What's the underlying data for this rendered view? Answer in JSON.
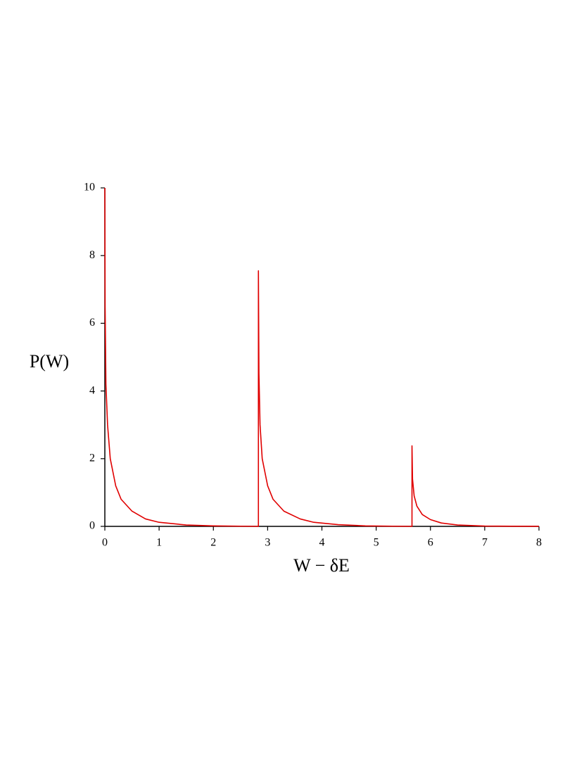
{
  "chart_data": {
    "type": "line",
    "x_label": "W − δE",
    "y_label": "P(W)",
    "color": "#e00000",
    "x": [
      0,
      0.005,
      0.02,
      0.05,
      0.1,
      0.2,
      0.3,
      0.5,
      0.75,
      1,
      1.5,
      2,
      2.5,
      2.83,
      2.83,
      2.84,
      2.86,
      2.9,
      3.0,
      3.1,
      3.3,
      3.6,
      3.85,
      4.3,
      4.8,
      5.3,
      5.66,
      5.66,
      5.67,
      5.7,
      5.75,
      5.85,
      6,
      6.2,
      6.5,
      7,
      7.5,
      8
    ],
    "values": [
      10,
      6.5,
      4.2,
      3,
      2.0,
      1.2,
      0.8,
      0.45,
      0.22,
      0.12,
      0.04,
      0.015,
      0.005,
      0,
      7.55,
      4.5,
      3,
      2,
      1.2,
      0.8,
      0.45,
      0.22,
      0.12,
      0.05,
      0.015,
      0.005,
      0,
      2.38,
      1.4,
      0.9,
      0.6,
      0.35,
      0.2,
      0.1,
      0.04,
      0.01,
      0.003,
      0.001
    ],
    "xlim": [
      0,
      8
    ],
    "ylim": [
      0,
      10
    ],
    "xticks": [
      0,
      1,
      2,
      3,
      4,
      5,
      6,
      7,
      8
    ],
    "yticks": [
      0,
      2,
      4,
      6,
      8,
      10
    ]
  }
}
